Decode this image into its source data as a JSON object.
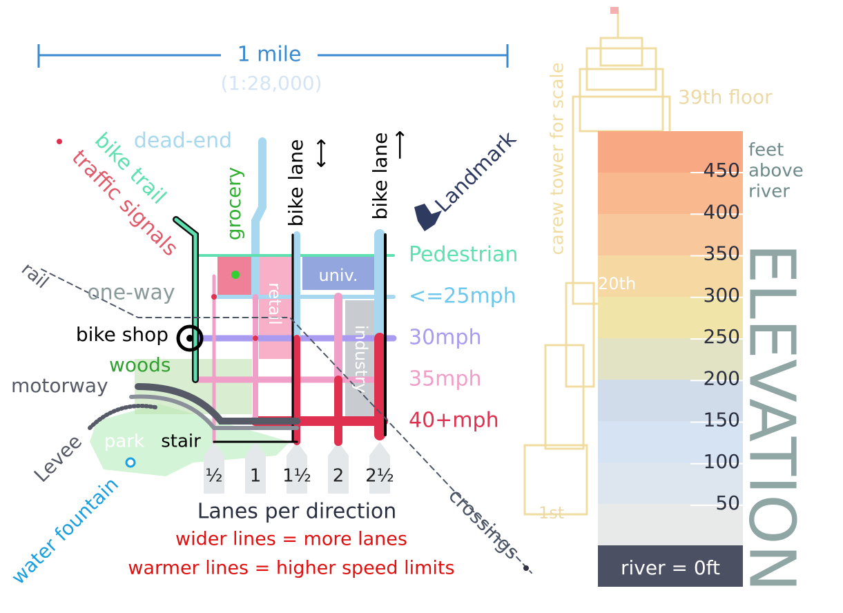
{
  "scale": {
    "distance": "1 mile",
    "ratio": "(1:28,000)"
  },
  "map_labels": {
    "bike_trail": "bike trail",
    "traffic_signals": "traffic signals",
    "dead_end": "dead-end",
    "grocery": "grocery",
    "bike_lane_two_way": "bike lane",
    "bike_lane_one_way": "bike lane",
    "landmark": "Landmark",
    "rail": "rail",
    "one_way": "one-way",
    "retail": "retail",
    "univ": "univ.",
    "industry": "industry",
    "bike_shop": "bike shop",
    "woods": "woods",
    "motorway": "motorway",
    "park": "park",
    "stair": "stair",
    "levee": "Levee",
    "water_fountain": "water fountain",
    "crossings": "crossings"
  },
  "speed_legend": [
    "Pedestrian",
    "<=25mph",
    "30mph",
    "35mph",
    "40+mph"
  ],
  "lanes": {
    "values": [
      "½",
      "1",
      "1½",
      "2",
      "2½"
    ],
    "title": "Lanes per direction",
    "note_width": "wider lines = more lanes",
    "note_speed": "warmer lines = higher speed limits"
  },
  "elevation": {
    "title": "ELEVATION",
    "unit": [
      "feet",
      "above",
      "river"
    ],
    "ticks": [
      450,
      400,
      350,
      300,
      250,
      200,
      150,
      100,
      50
    ],
    "base": "river = 0ft",
    "tower": "carew tower for scale",
    "floors": [
      "39th floor",
      "20th",
      "1st"
    ]
  }
}
